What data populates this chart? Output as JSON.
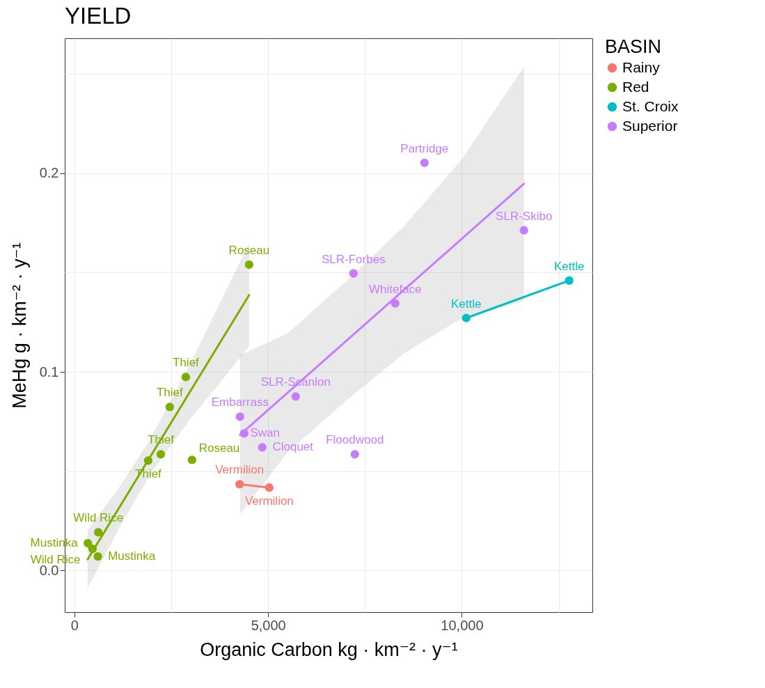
{
  "chart_data": {
    "type": "scatter",
    "title": "YIELD",
    "xlabel": "Organic Carbon kg · km⁻² · y⁻¹",
    "ylabel": "MeHg g · km⁻² · y⁻¹",
    "legend_title": "BASIN",
    "xlim": [
      -250,
      13370
    ],
    "ylim": [
      -0.021,
      0.268
    ],
    "xticks": [
      0,
      {
        "value": 2500,
        "label": null
      },
      {
        "value": 5000,
        "label": "5,000"
      },
      {
        "value": 7500,
        "label": null
      },
      {
        "value": 10000,
        "label": "10,000"
      },
      {
        "value": 12500,
        "label": null
      }
    ],
    "yticks": [
      {
        "value": 0,
        "label": "0.0"
      },
      {
        "value": 0.05,
        "label": null
      },
      0.1,
      {
        "value": 0.15,
        "label": null
      },
      0.2,
      {
        "value": 0.25,
        "label": null
      }
    ],
    "grid": true,
    "legend": "right",
    "marker": "circle",
    "series": [
      {
        "type": "line",
        "marker": "none",
        "color": "#7cae00",
        "x": [
          341,
          1200,
          2000,
          3000,
          4510
        ],
        "values": [
          0.0056,
          0.033,
          0.0586,
          0.0905,
          0.1387
        ],
        "lower": [
          -0.009,
          0.023,
          0.0496,
          0.0765,
          0.1127
        ],
        "upper": [
          0.0202,
          0.043,
          0.0676,
          0.1045,
          0.1647
        ]
      },
      {
        "type": "line",
        "marker": "none",
        "color": "#c77cff",
        "x": [
          4275,
          5500,
          7000,
          8500,
          10000,
          11604
        ],
        "values": [
          0.0683,
          0.0894,
          0.1153,
          0.1412,
          0.167,
          0.1947
        ],
        "lower": [
          0.0283,
          0.0594,
          0.0853,
          0.1092,
          0.127,
          0.1357
        ],
        "upper": [
          0.1083,
          0.1194,
          0.1453,
          0.1732,
          0.207,
          0.2537
        ]
      },
      {
        "type": "line",
        "marker": "none",
        "color": "#f8766d",
        "x": [
          4263,
          5030
        ],
        "values": [
          0.0434,
          0.0417
        ]
      },
      {
        "type": "line",
        "marker": "none",
        "color": "#00bfc4",
        "x": [
          10113,
          12772
        ],
        "values": [
          0.1271,
          0.146
        ]
      },
      {
        "name": "Rainy",
        "color": "#f8766d",
        "x": [
          4263,
          5030
        ],
        "values": [
          0.0434,
          0.0417
        ]
      },
      {
        "name": "Red",
        "color": "#7cae00",
        "x": [
          4510,
          2875,
          2460,
          2230,
          1905,
          3035,
          616,
          347,
          467,
          605
        ],
        "values": [
          0.154,
          0.0974,
          0.0823,
          0.0585,
          0.0553,
          0.0557,
          0.0192,
          0.0137,
          0.0109,
          0.007
        ]
      },
      {
        "name": "St. Croix",
        "color": "#00bfc4",
        "x": [
          10113,
          12772
        ],
        "values": [
          0.1271,
          0.146
        ]
      },
      {
        "name": "Superior",
        "color": "#c77cff",
        "x": [
          9036,
          11604,
          7203,
          8281,
          5712,
          4275,
          4383,
          4850,
          7239
        ],
        "values": [
          0.2053,
          0.1713,
          0.1496,
          0.1345,
          0.0876,
          0.0774,
          0.069,
          0.062,
          0.0585
        ]
      }
    ],
    "annotations": [
      {
        "text": "Vermilion",
        "x": 4263,
        "y": 0.0434
      },
      {
        "text": "Vermilion",
        "x": 5030,
        "y": 0.0417
      },
      {
        "text": "Roseau",
        "x": 4510,
        "y": 0.154
      },
      {
        "text": "Thief",
        "x": 2875,
        "y": 0.0974
      },
      {
        "text": "Thief",
        "x": 2460,
        "y": 0.0823
      },
      {
        "text": "Thief",
        "x": 2230,
        "y": 0.0585
      },
      {
        "text": "Thief",
        "x": 1905,
        "y": 0.0553
      },
      {
        "text": "Roseau",
        "x": 3035,
        "y": 0.0557
      },
      {
        "text": "Wild Rice",
        "x": 616,
        "y": 0.0192
      },
      {
        "text": "Mustinka",
        "x": 347,
        "y": 0.0137
      },
      {
        "text": "Wild Rice",
        "x": 467,
        "y": 0.0109
      },
      {
        "text": "Mustinka",
        "x": 605,
        "y": 0.007
      },
      {
        "text": "Kettle",
        "x": 10113,
        "y": 0.1271
      },
      {
        "text": "Kettle",
        "x": 12772,
        "y": 0.146
      },
      {
        "text": "Partridge",
        "x": 9036,
        "y": 0.2053
      },
      {
        "text": "SLR-Skibo",
        "x": 11604,
        "y": 0.1713
      },
      {
        "text": "SLR-Forbes",
        "x": 7203,
        "y": 0.1496
      },
      {
        "text": "Whiteface",
        "x": 8281,
        "y": 0.1345
      },
      {
        "text": "SLR-Scanlon",
        "x": 5712,
        "y": 0.0876
      },
      {
        "text": "Embarrass",
        "x": 4275,
        "y": 0.0774
      },
      {
        "text": "Swan",
        "x": 4383,
        "y": 0.069
      },
      {
        "text": "Cloquet",
        "x": 4850,
        "y": 0.062
      },
      {
        "text": "Floodwood",
        "x": 7239,
        "y": 0.0585
      }
    ]
  }
}
